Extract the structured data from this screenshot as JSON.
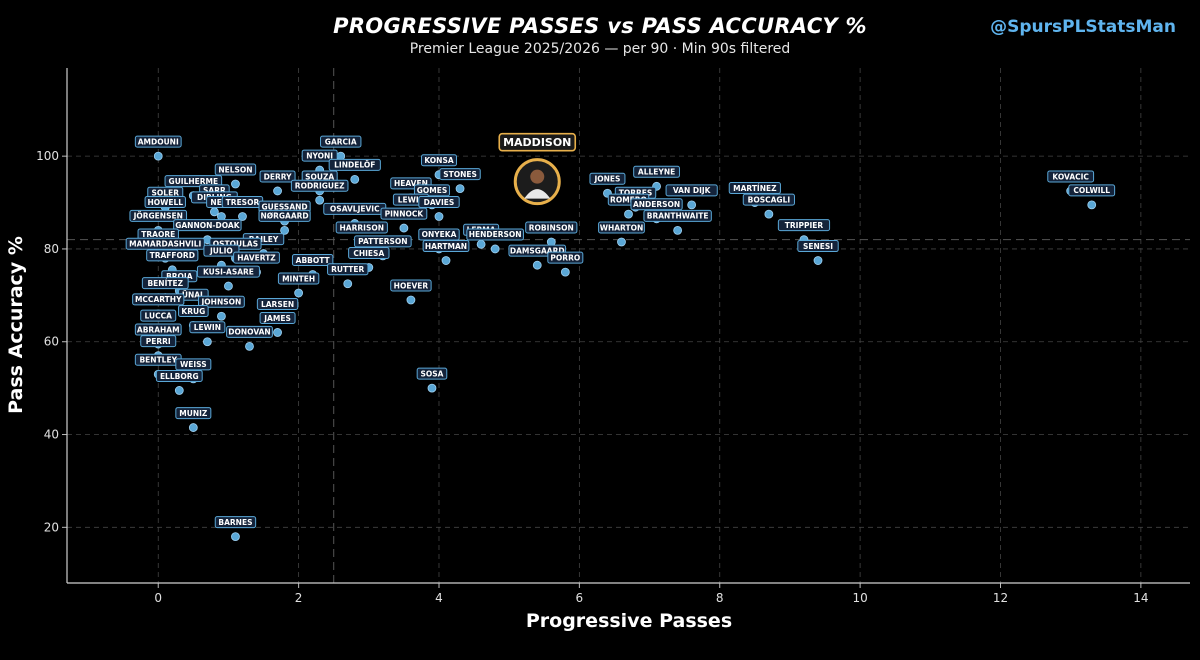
{
  "title": "PROGRESSIVE PASSES vs PASS ACCURACY %",
  "subtitle": "Premier League 2025/2026 — per 90 · Min 90s filtered",
  "handle": "@SpursPLStatsMan",
  "colors": {
    "background": "#000000",
    "point": "#5aa7d6",
    "label_border": "#5aa7d6",
    "label_fill": "#14233a",
    "highlight": "#e8b04b",
    "handle": "#5fb4ee",
    "grid": "#444444"
  },
  "chart_data": {
    "type": "scatter",
    "title": "PROGRESSIVE PASSES vs PASS ACCURACY %",
    "subtitle": "Premier League 2025/2026 — per 90 · Min 90s filtered",
    "xlabel": "Progressive Passes",
    "ylabel": "Pass Accuracy %",
    "xlim": [
      -1.3,
      14.7
    ],
    "ylim": [
      8,
      119
    ],
    "xticks": [
      0,
      2,
      4,
      6,
      8,
      10,
      12,
      14
    ],
    "yticks": [
      20,
      40,
      60,
      80,
      100
    ],
    "reference_lines": {
      "x": 2.5,
      "y": 82
    },
    "grid": true,
    "highlight": {
      "name": "MADDISON",
      "x": 5.4,
      "y": 94.5
    },
    "points": [
      {
        "name": "AMDOUNI",
        "x": 0.0,
        "y": 100
      },
      {
        "name": "GARCIA",
        "x": 2.6,
        "y": 100
      },
      {
        "name": "NYONI",
        "x": 2.3,
        "y": 97
      },
      {
        "name": "LINDELÖF",
        "x": 2.8,
        "y": 95
      },
      {
        "name": "NELSON",
        "x": 1.1,
        "y": 94
      },
      {
        "name": "DERRY",
        "x": 1.7,
        "y": 92.5
      },
      {
        "name": "SOUZA",
        "x": 2.3,
        "y": 92.5
      },
      {
        "name": "KONSA",
        "x": 4.0,
        "y": 96
      },
      {
        "name": "STONES",
        "x": 4.3,
        "y": 93
      },
      {
        "name": "JONES",
        "x": 6.4,
        "y": 92
      },
      {
        "name": "ALLEYNE",
        "x": 7.1,
        "y": 93.5
      },
      {
        "name": "GUILHERME",
        "x": 0.5,
        "y": 91.5
      },
      {
        "name": "SARR",
        "x": 0.8,
        "y": 89.5
      },
      {
        "name": "RODRIGUEZ",
        "x": 2.3,
        "y": 90.5
      },
      {
        "name": "HEAVEN",
        "x": 3.6,
        "y": 91
      },
      {
        "name": "GOMES",
        "x": 3.9,
        "y": 89.5
      },
      {
        "name": "TORRES",
        "x": 6.8,
        "y": 89
      },
      {
        "name": "VAN DIJK",
        "x": 7.6,
        "y": 89.5
      },
      {
        "name": "MARTÍNEZ",
        "x": 8.5,
        "y": 90
      },
      {
        "name": "KOVACIC",
        "x": 13.0,
        "y": 92.5
      },
      {
        "name": "COLWILL",
        "x": 13.3,
        "y": 89.5
      },
      {
        "name": "SOLER",
        "x": 0.1,
        "y": 89
      },
      {
        "name": "HOWELL",
        "x": 0.1,
        "y": 87
      },
      {
        "name": "DIBLING",
        "x": 0.8,
        "y": 88
      },
      {
        "name": "NETZ",
        "x": 0.9,
        "y": 87
      },
      {
        "name": "TRESOR",
        "x": 1.2,
        "y": 87
      },
      {
        "name": "GUESSAND",
        "x": 1.8,
        "y": 86
      },
      {
        "name": "OSAVLJEVIC",
        "x": 2.8,
        "y": 85.5
      },
      {
        "name": "LEWIS",
        "x": 3.6,
        "y": 87.5
      },
      {
        "name": "DAVIES",
        "x": 4.0,
        "y": 87
      },
      {
        "name": "ROMERO",
        "x": 6.7,
        "y": 87.5
      },
      {
        "name": "ANDERSON",
        "x": 7.1,
        "y": 86.5
      },
      {
        "name": "BOSCAGLI",
        "x": 8.7,
        "y": 87.5
      },
      {
        "name": "JÖRGENSEN",
        "x": 0.0,
        "y": 84
      },
      {
        "name": "NØRGAARD",
        "x": 1.8,
        "y": 84
      },
      {
        "name": "PINNOCK",
        "x": 3.5,
        "y": 84.5
      },
      {
        "name": "BRANTHWAITE",
        "x": 7.4,
        "y": 84
      },
      {
        "name": "TRIPPIER",
        "x": 9.2,
        "y": 82
      },
      {
        "name": "GANNON-DOAK",
        "x": 0.7,
        "y": 82
      },
      {
        "name": "HARRISON",
        "x": 2.9,
        "y": 81.5
      },
      {
        "name": "ROBINSON",
        "x": 5.6,
        "y": 81.5
      },
      {
        "name": "WHARTON",
        "x": 6.6,
        "y": 81.5
      },
      {
        "name": "SENESI",
        "x": 9.4,
        "y": 77.5
      },
      {
        "name": "TRAORE",
        "x": 0.0,
        "y": 80
      },
      {
        "name": "BAILEY",
        "x": 1.5,
        "y": 79
      },
      {
        "name": "ONYEKA",
        "x": 4.0,
        "y": 80
      },
      {
        "name": "LERMA",
        "x": 4.6,
        "y": 81
      },
      {
        "name": "HENDERSON",
        "x": 4.8,
        "y": 80
      },
      {
        "name": "PATTERSON",
        "x": 3.2,
        "y": 78.5
      },
      {
        "name": "MAMARDASHVILI",
        "x": 0.1,
        "y": 78
      },
      {
        "name": "OSTOULAS",
        "x": 1.1,
        "y": 78
      },
      {
        "name": "CHIESA",
        "x": 3.0,
        "y": 76
      },
      {
        "name": "HARTMAN",
        "x": 4.1,
        "y": 77.5
      },
      {
        "name": "DAMSGAARD",
        "x": 5.4,
        "y": 76.5
      },
      {
        "name": "PORRO",
        "x": 5.8,
        "y": 75
      },
      {
        "name": "TRAFFORD",
        "x": 0.2,
        "y": 75.5
      },
      {
        "name": "JULIO",
        "x": 0.9,
        "y": 76.5
      },
      {
        "name": "HAVERTZ",
        "x": 1.4,
        "y": 75
      },
      {
        "name": "ABBOTT",
        "x": 2.2,
        "y": 74.5
      },
      {
        "name": "RUTTER",
        "x": 2.7,
        "y": 72.5
      },
      {
        "name": "HOEVER",
        "x": 3.6,
        "y": 69
      },
      {
        "name": "BROJA",
        "x": 0.3,
        "y": 71
      },
      {
        "name": "KUSI-ASARE",
        "x": 1.0,
        "y": 72
      },
      {
        "name": "MINTEH",
        "x": 2.0,
        "y": 70.5
      },
      {
        "name": "BENÍTEZ",
        "x": 0.1,
        "y": 69.5
      },
      {
        "name": "ÜNAL",
        "x": 0.5,
        "y": 67
      },
      {
        "name": "JOHNSON",
        "x": 0.9,
        "y": 65.5
      },
      {
        "name": "LARSEN",
        "x": 1.7,
        "y": 65
      },
      {
        "name": "MCCARTHY",
        "x": 0.0,
        "y": 66
      },
      {
        "name": "KRUG",
        "x": 0.5,
        "y": 63.5
      },
      {
        "name": "JAMES",
        "x": 1.7,
        "y": 62
      },
      {
        "name": "LUCCA",
        "x": 0.0,
        "y": 62.5
      },
      {
        "name": "LEWIN",
        "x": 0.7,
        "y": 60
      },
      {
        "name": "DONOVAN",
        "x": 1.3,
        "y": 59
      },
      {
        "name": "ABRAHAM",
        "x": 0.0,
        "y": 59.5
      },
      {
        "name": "PERRI",
        "x": 0.0,
        "y": 57
      },
      {
        "name": "BENTLEY",
        "x": 0.0,
        "y": 53
      },
      {
        "name": "WEISS",
        "x": 0.5,
        "y": 52
      },
      {
        "name": "ELLBORG",
        "x": 0.3,
        "y": 49.5
      },
      {
        "name": "SOSA",
        "x": 3.9,
        "y": 50
      },
      {
        "name": "MUNIZ",
        "x": 0.5,
        "y": 41.5
      },
      {
        "name": "BARNES",
        "x": 1.1,
        "y": 18
      }
    ]
  }
}
